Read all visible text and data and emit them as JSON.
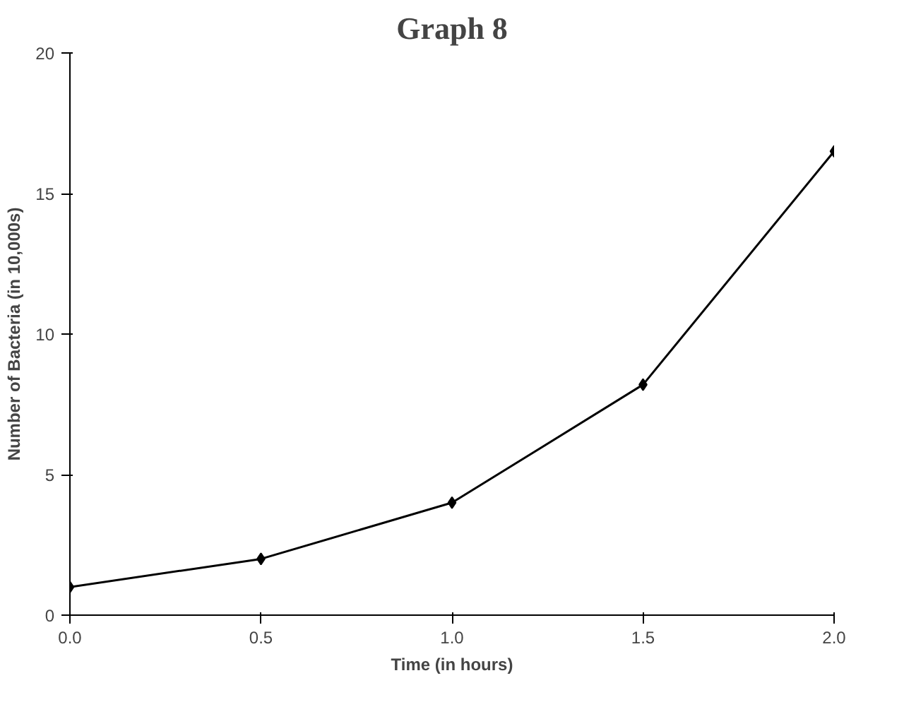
{
  "chart_data": {
    "type": "line",
    "title": "Graph 8",
    "xlabel": "Time (in hours)",
    "ylabel": "Number of Bacteria (in 10,000s)",
    "x": [
      0.0,
      0.5,
      1.0,
      1.5,
      2.0
    ],
    "series": [
      {
        "color": "#000000",
        "values": [
          1,
          2,
          4,
          8.2,
          16.5
        ]
      }
    ],
    "xlim": [
      0,
      2
    ],
    "ylim": [
      0,
      20
    ],
    "xticks": [
      {
        "value": 0,
        "label": "0.0"
      },
      {
        "value": 0.5,
        "label": "0.5"
      },
      {
        "value": 1,
        "label": "1.0"
      },
      {
        "value": 1.5,
        "label": "1.5"
      },
      {
        "value": 2,
        "label": "2.0"
      }
    ],
    "yticks": [
      0,
      5,
      10,
      15,
      20
    ],
    "marker": "diamond",
    "line_style": "solid"
  }
}
